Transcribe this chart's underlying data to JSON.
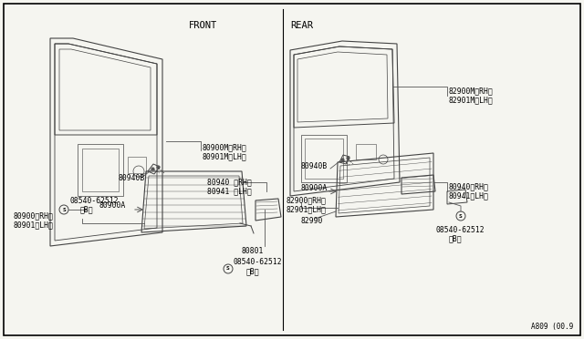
{
  "background_color": "#f5f5f0",
  "border_color": "#000000",
  "line_color": "#333333",
  "text_color": "#000000",
  "front_label": "FRONT",
  "rear_label": "REAR",
  "part_number_label": "A809 (00.9"
}
